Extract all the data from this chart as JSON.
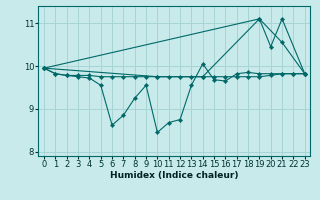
{
  "xlabel": "Humidex (Indice chaleur)",
  "xlim": [
    -0.5,
    23.5
  ],
  "ylim": [
    7.9,
    11.4
  ],
  "yticks": [
    8,
    9,
    10,
    11
  ],
  "xticks": [
    0,
    1,
    2,
    3,
    4,
    5,
    6,
    7,
    8,
    9,
    10,
    11,
    12,
    13,
    14,
    15,
    16,
    17,
    18,
    19,
    20,
    21,
    22,
    23
  ],
  "background_color": "#c8eaea",
  "grid_color": "#a8d4d4",
  "line_color": "#006868",
  "series": [
    {
      "x": [
        0,
        1,
        2,
        3,
        4,
        5,
        6,
        7,
        8,
        9,
        10,
        11,
        12,
        13,
        14,
        15,
        16,
        17,
        18,
        19,
        20,
        21,
        22,
        23
      ],
      "y": [
        9.95,
        9.82,
        9.78,
        9.78,
        9.78,
        9.75,
        9.75,
        9.75,
        9.75,
        9.75,
        9.75,
        9.75,
        9.75,
        9.75,
        9.75,
        9.75,
        9.75,
        9.75,
        9.75,
        9.75,
        9.78,
        9.82,
        9.82,
        9.82
      ]
    },
    {
      "x": [
        0,
        1,
        2,
        3,
        4,
        5,
        6,
        7,
        8,
        9,
        10,
        11,
        12,
        13,
        14,
        15,
        16,
        17,
        18,
        19,
        20,
        21,
        22,
        23
      ],
      "y": [
        9.95,
        9.82,
        9.78,
        9.75,
        9.72,
        9.55,
        8.62,
        8.85,
        9.25,
        9.55,
        8.45,
        8.68,
        8.75,
        9.55,
        10.05,
        9.68,
        9.65,
        9.82,
        9.85,
        9.82,
        9.82,
        9.82,
        9.82,
        9.82
      ]
    },
    {
      "x": [
        0,
        19,
        20,
        21,
        23
      ],
      "y": [
        9.95,
        11.1,
        10.45,
        11.1,
        9.82
      ]
    },
    {
      "x": [
        0,
        10,
        14,
        19,
        21,
        23
      ],
      "y": [
        9.95,
        9.75,
        9.75,
        11.1,
        10.55,
        9.82
      ]
    }
  ]
}
